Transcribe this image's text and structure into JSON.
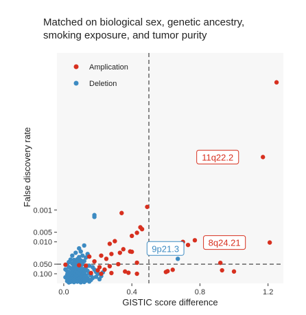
{
  "chart_data": {
    "type": "scatter",
    "title_lines": [
      "Matched on biological sex, genetic ancestry,",
      "smoking exposure, and tumor purity"
    ],
    "xlabel": "GISTIC score difference",
    "ylabel": "False discovery rate",
    "x_ticks": [
      0.0,
      0.4,
      0.8,
      1.2
    ],
    "x_tick_labels": [
      "0.0",
      "0.4",
      "0.8",
      "1.2"
    ],
    "xlim": [
      -0.04,
      1.29
    ],
    "y_scale": "reversed-log",
    "y_ticks": [
      0.001,
      0.005,
      0.01,
      0.05,
      0.1
    ],
    "y_tick_labels": [
      "0.001",
      "0.005",
      "0.010",
      "0.050",
      "0.100"
    ],
    "ylim": [
      1.2e-08,
      0.2
    ],
    "threshold_x": 0.5,
    "threshold_y": 0.05,
    "legend": {
      "position": "top-left",
      "entries": [
        {
          "name": "Amplication",
          "color": "#d7301f"
        },
        {
          "name": "Deletion",
          "color": "#3d8bc2"
        }
      ]
    },
    "background": "#f7f7f7",
    "series": [
      {
        "name": "Amplication",
        "color": "#d7301f",
        "points": [
          [
            1.25,
            1e-07
          ],
          [
            1.17,
            2.2e-05
          ],
          [
            1.21,
            0.0105
          ],
          [
            0.49,
            0.0008
          ],
          [
            0.34,
            0.00125
          ],
          [
            0.46,
            0.004
          ],
          [
            0.45,
            0.0035
          ],
          [
            0.43,
            0.0052
          ],
          [
            0.4,
            0.0065
          ],
          [
            0.3,
            0.0095
          ],
          [
            0.27,
            0.0115
          ],
          [
            0.35,
            0.017
          ],
          [
            0.4,
            0.0205
          ],
          [
            0.39,
            0.02
          ],
          [
            0.28,
            0.024
          ],
          [
            0.22,
            0.027
          ],
          [
            0.33,
            0.022
          ],
          [
            0.15,
            0.029
          ],
          [
            0.25,
            0.034
          ],
          [
            0.18,
            0.041
          ],
          [
            0.01,
            0.052
          ],
          [
            0.43,
            0.045
          ],
          [
            0.32,
            0.05
          ],
          [
            0.27,
            0.058
          ],
          [
            0.21,
            0.062
          ],
          [
            0.13,
            0.056
          ],
          [
            0.09,
            0.054
          ],
          [
            0.24,
            0.074
          ],
          [
            0.2,
            0.078
          ],
          [
            0.36,
            0.085
          ],
          [
            0.38,
            0.093
          ],
          [
            0.16,
            0.095
          ],
          [
            0.28,
            0.095
          ],
          [
            0.22,
            0.1
          ],
          [
            0.43,
            0.1
          ],
          [
            0.7,
            0.01
          ],
          [
            0.73,
            0.0125
          ],
          [
            0.77,
            0.0089
          ],
          [
            0.92,
            0.0455
          ],
          [
            0.93,
            0.078
          ],
          [
            1.0,
            0.085
          ],
          [
            0.64,
            0.075
          ],
          [
            0.61,
            0.083
          ],
          [
            0.6,
            0.088
          ]
        ]
      },
      {
        "name": "Deletion",
        "color": "#3d8bc2",
        "points": [
          [
            0.18,
            0.00145
          ],
          [
            0.18,
            0.00165
          ],
          [
            0.67,
            0.034
          ],
          [
            0.12,
            0.013
          ],
          [
            0.09,
            0.016
          ],
          [
            0.1,
            0.02
          ],
          [
            0.07,
            0.022
          ],
          [
            0.14,
            0.024
          ],
          [
            0.11,
            0.027
          ],
          [
            0.05,
            0.027
          ],
          [
            0.09,
            0.03
          ],
          [
            0.13,
            0.031
          ],
          [
            0.08,
            0.035
          ],
          [
            0.04,
            0.036
          ],
          [
            0.06,
            0.037
          ],
          [
            0.1,
            0.038
          ],
          [
            0.12,
            0.04
          ],
          [
            0.03,
            0.043
          ],
          [
            0.07,
            0.044
          ],
          [
            0.09,
            0.046
          ],
          [
            0.05,
            0.048
          ],
          [
            0.11,
            0.05
          ],
          [
            0.02,
            0.052
          ],
          [
            0.08,
            0.054
          ],
          [
            0.15,
            0.056
          ],
          [
            0.06,
            0.058
          ],
          [
            0.1,
            0.06
          ],
          [
            0.03,
            0.062
          ],
          [
            0.13,
            0.063
          ],
          [
            0.07,
            0.065
          ],
          [
            0.04,
            0.067
          ],
          [
            0.09,
            0.069
          ],
          [
            0.12,
            0.071
          ],
          [
            0.01,
            0.073
          ],
          [
            0.05,
            0.075
          ],
          [
            0.08,
            0.077
          ],
          [
            0.11,
            0.079
          ],
          [
            0.14,
            0.081
          ],
          [
            0.02,
            0.083
          ],
          [
            0.06,
            0.085
          ],
          [
            0.1,
            0.087
          ],
          [
            0.03,
            0.089
          ],
          [
            0.07,
            0.091
          ],
          [
            0.12,
            0.093
          ],
          [
            0.04,
            0.095
          ],
          [
            0.09,
            0.097
          ],
          [
            0.15,
            0.099
          ],
          [
            0.05,
            0.101
          ],
          [
            0.08,
            0.103
          ],
          [
            0.11,
            0.105
          ],
          [
            0.02,
            0.107
          ],
          [
            0.06,
            0.109
          ],
          [
            0.13,
            0.111
          ],
          [
            0.1,
            0.113
          ],
          [
            0.03,
            0.115
          ],
          [
            0.07,
            0.117
          ],
          [
            0.04,
            0.119
          ],
          [
            0.09,
            0.121
          ],
          [
            0.12,
            0.123
          ],
          [
            0.05,
            0.125
          ],
          [
            0.08,
            0.127
          ],
          [
            0.01,
            0.129
          ],
          [
            0.11,
            0.131
          ],
          [
            0.06,
            0.133
          ],
          [
            0.14,
            0.135
          ],
          [
            0.03,
            0.137
          ],
          [
            0.1,
            0.139
          ],
          [
            0.07,
            0.141
          ],
          [
            0.02,
            0.143
          ],
          [
            0.09,
            0.145
          ],
          [
            0.05,
            0.147
          ],
          [
            0.12,
            0.149
          ],
          [
            0.04,
            0.151
          ],
          [
            0.08,
            0.153
          ],
          [
            0.16,
            0.155
          ],
          [
            0.06,
            0.157
          ],
          [
            0.11,
            0.159
          ],
          [
            0.03,
            0.161
          ],
          [
            0.1,
            0.163
          ],
          [
            0.13,
            0.165
          ],
          [
            0.07,
            0.167
          ],
          [
            0.02,
            0.169
          ],
          [
            0.09,
            0.171
          ],
          [
            0.05,
            0.173
          ],
          [
            0.15,
            0.175
          ],
          [
            0.08,
            0.177
          ],
          [
            0.04,
            0.179
          ],
          [
            0.12,
            0.181
          ],
          [
            0.06,
            0.183
          ],
          [
            0.1,
            0.185
          ],
          [
            0.03,
            0.187
          ],
          [
            0.17,
            0.062
          ],
          [
            0.18,
            0.074
          ],
          [
            0.19,
            0.088
          ],
          [
            0.2,
            0.1
          ],
          [
            0.22,
            0.118
          ],
          [
            0.17,
            0.135
          ],
          [
            0.21,
            0.148
          ],
          [
            0.16,
            0.112
          ],
          [
            0.19,
            0.125
          ],
          [
            0.23,
            0.09
          ]
        ]
      }
    ],
    "callouts": [
      {
        "label": "11q22.2",
        "color": "#d7301f"
      },
      {
        "label": "8q24.21",
        "color": "#d7301f"
      },
      {
        "label": "9p21.3",
        "color": "#3d8bc2"
      }
    ]
  }
}
